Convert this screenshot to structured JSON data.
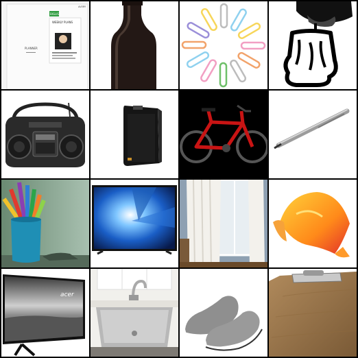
{
  "tiles": [
    {
      "id": "planner-book",
      "label": "planner book",
      "texts": {
        "badge": "BIGLIST",
        "cover_title": "WEEKLY PLANS",
        "brand": "AVERY",
        "side_title": "PLANNER"
      }
    },
    {
      "id": "bottle",
      "label": "brown glass bottle"
    },
    {
      "id": "paper-clips",
      "label": "colored paper clips"
    },
    {
      "id": "melting-candle",
      "label": "melting candle drawing"
    },
    {
      "id": "boombox",
      "label": "CD boombox radio"
    },
    {
      "id": "speaker",
      "label": "black speaker"
    },
    {
      "id": "bicycle",
      "label": "red bicycle"
    },
    {
      "id": "pen",
      "label": "silver pen"
    },
    {
      "id": "colored-pencils",
      "label": "colored pencils in cup"
    },
    {
      "id": "television",
      "label": "flat screen TV"
    },
    {
      "id": "curtains",
      "label": "white curtains"
    },
    {
      "id": "calla-lily",
      "label": "orange calla lily"
    },
    {
      "id": "monitor",
      "label": "acer monitor",
      "texts": {
        "brand": "acer"
      }
    },
    {
      "id": "kitchen-sink",
      "label": "stainless steel sink"
    },
    {
      "id": "slip-on-shoes",
      "label": "gray slip-on shoes"
    },
    {
      "id": "clipboard",
      "label": "wooden clipboard"
    }
  ],
  "colors": {
    "background": "#000000",
    "tile": "#ffffff",
    "bike_red": "#c81414"
  }
}
